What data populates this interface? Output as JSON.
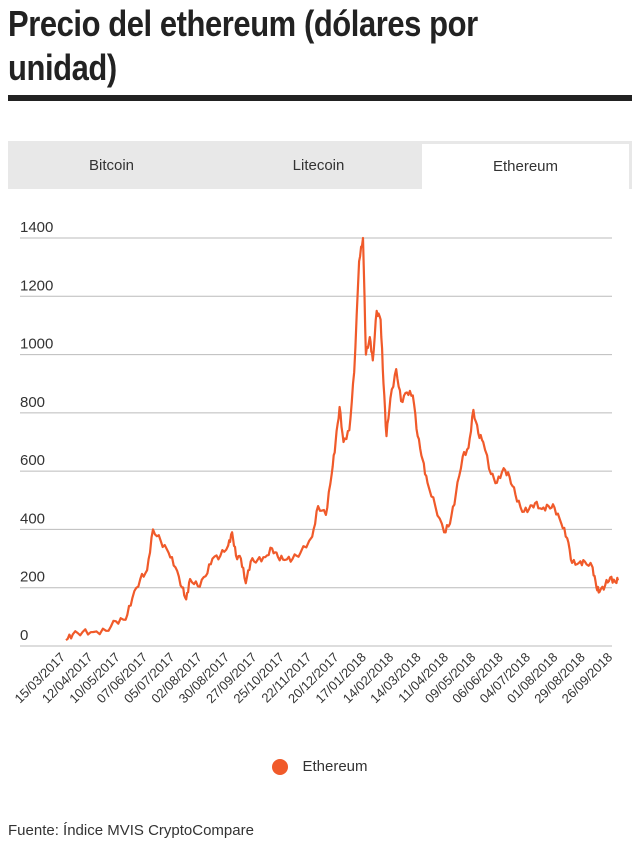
{
  "title": "Precio del ethereum (dólares por unidad)",
  "tabs": [
    {
      "label": "Bitcoin",
      "active": false
    },
    {
      "label": "Litecoin",
      "active": false
    },
    {
      "label": "Ethereum",
      "active": true
    }
  ],
  "legend": {
    "label": "Ethereum",
    "color": "#f05a2a"
  },
  "source": "Fuente: Índice MVIS CryptoCompare",
  "colors": {
    "series": "#f05a2a",
    "grid": "#bbbbbb",
    "tab_bg": "#e8e8e8"
  },
  "chart_data": {
    "type": "line",
    "title": "Precio del ethereum (dólares por unidad)",
    "xlabel": "",
    "ylabel": "",
    "ylim": [
      0,
      1400
    ],
    "yticks": [
      0,
      200,
      400,
      600,
      800,
      1000,
      1200,
      1400
    ],
    "xlim": [
      "2017-03-15",
      "2018-10-01"
    ],
    "xticks": [
      "15/03/2017",
      "12/04/2017",
      "10/05/2017",
      "07/06/2017",
      "05/07/2017",
      "02/08/2017",
      "30/08/2017",
      "27/09/2017",
      "25/10/2017",
      "22/11/2017",
      "20/12/2017",
      "17/01/2018",
      "14/02/2018",
      "14/03/2018",
      "11/04/2018",
      "09/05/2018",
      "06/06/2018",
      "04/07/2018",
      "01/08/2018",
      "29/08/2018",
      "26/09/2018"
    ],
    "grid": true,
    "legend_position": "bottom",
    "series": [
      {
        "name": "Ethereum",
        "color": "#f05a2a",
        "points": [
          [
            "2017-03-15",
            20
          ],
          [
            "2017-03-22",
            40
          ],
          [
            "2017-04-01",
            48
          ],
          [
            "2017-04-12",
            48
          ],
          [
            "2017-04-25",
            52
          ],
          [
            "2017-05-05",
            85
          ],
          [
            "2017-05-15",
            90
          ],
          [
            "2017-05-22",
            165
          ],
          [
            "2017-05-30",
            230
          ],
          [
            "2017-06-06",
            260
          ],
          [
            "2017-06-12",
            400
          ],
          [
            "2017-06-20",
            360
          ],
          [
            "2017-06-28",
            320
          ],
          [
            "2017-07-05",
            270
          ],
          [
            "2017-07-12",
            200
          ],
          [
            "2017-07-16",
            160
          ],
          [
            "2017-07-20",
            230
          ],
          [
            "2017-07-28",
            205
          ],
          [
            "2017-08-05",
            240
          ],
          [
            "2017-08-12",
            300
          ],
          [
            "2017-08-20",
            310
          ],
          [
            "2017-08-28",
            345
          ],
          [
            "2017-09-01",
            390
          ],
          [
            "2017-09-05",
            310
          ],
          [
            "2017-09-10",
            300
          ],
          [
            "2017-09-15",
            215
          ],
          [
            "2017-09-20",
            290
          ],
          [
            "2017-09-27",
            295
          ],
          [
            "2017-10-05",
            305
          ],
          [
            "2017-10-12",
            335
          ],
          [
            "2017-10-18",
            305
          ],
          [
            "2017-10-25",
            295
          ],
          [
            "2017-11-02",
            300
          ],
          [
            "2017-11-10",
            320
          ],
          [
            "2017-11-22",
            375
          ],
          [
            "2017-11-28",
            480
          ],
          [
            "2017-12-06",
            450
          ],
          [
            "2017-12-12",
            590
          ],
          [
            "2017-12-16",
            700
          ],
          [
            "2017-12-20",
            820
          ],
          [
            "2017-12-24",
            700
          ],
          [
            "2017-12-30",
            740
          ],
          [
            "2018-01-04",
            940
          ],
          [
            "2018-01-09",
            1320
          ],
          [
            "2018-01-13",
            1400
          ],
          [
            "2018-01-16",
            1000
          ],
          [
            "2018-01-20",
            1060
          ],
          [
            "2018-01-23",
            980
          ],
          [
            "2018-01-27",
            1150
          ],
          [
            "2018-01-31",
            1120
          ],
          [
            "2018-02-03",
            900
          ],
          [
            "2018-02-06",
            720
          ],
          [
            "2018-02-10",
            850
          ],
          [
            "2018-02-16",
            950
          ],
          [
            "2018-02-21",
            840
          ],
          [
            "2018-02-27",
            870
          ],
          [
            "2018-03-05",
            860
          ],
          [
            "2018-03-10",
            720
          ],
          [
            "2018-03-15",
            640
          ],
          [
            "2018-03-20",
            560
          ],
          [
            "2018-03-28",
            480
          ],
          [
            "2018-04-06",
            390
          ],
          [
            "2018-04-12",
            420
          ],
          [
            "2018-04-18",
            520
          ],
          [
            "2018-04-25",
            650
          ],
          [
            "2018-05-01",
            680
          ],
          [
            "2018-05-06",
            810
          ],
          [
            "2018-05-11",
            730
          ],
          [
            "2018-05-16",
            700
          ],
          [
            "2018-05-24",
            590
          ],
          [
            "2018-05-30",
            560
          ],
          [
            "2018-06-06",
            610
          ],
          [
            "2018-06-12",
            580
          ],
          [
            "2018-06-18",
            520
          ],
          [
            "2018-06-25",
            460
          ],
          [
            "2018-07-02",
            470
          ],
          [
            "2018-07-08",
            490
          ],
          [
            "2018-07-15",
            470
          ],
          [
            "2018-07-22",
            480
          ],
          [
            "2018-07-28",
            475
          ],
          [
            "2018-08-04",
            420
          ],
          [
            "2018-08-10",
            370
          ],
          [
            "2018-08-15",
            285
          ],
          [
            "2018-08-22",
            285
          ],
          [
            "2018-08-28",
            290
          ],
          [
            "2018-09-05",
            270
          ],
          [
            "2018-09-09",
            200
          ],
          [
            "2018-09-12",
            185
          ],
          [
            "2018-09-18",
            210
          ],
          [
            "2018-09-23",
            235
          ],
          [
            "2018-09-28",
            220
          ],
          [
            "2018-10-01",
            225
          ]
        ]
      }
    ]
  }
}
